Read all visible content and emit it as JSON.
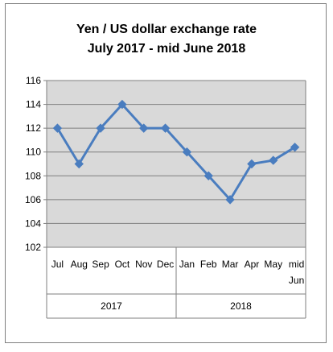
{
  "chart_data": {
    "type": "line",
    "title_lines": [
      "Yen / US dollar exchange rate",
      "July 2017 - mid June 2018"
    ],
    "categories": [
      "Jul",
      "Aug",
      "Sep",
      "Oct",
      "Nov",
      "Dec",
      "Jan",
      "Feb",
      "Mar",
      "Apr",
      "May",
      "mid Jun"
    ],
    "category_groups": [
      {
        "label": "2017",
        "count": 6
      },
      {
        "label": "2018",
        "count": 6
      }
    ],
    "values": [
      112,
      109,
      112,
      114,
      112,
      112,
      110,
      108,
      106,
      109,
      109.3,
      110.4
    ],
    "ylim": [
      102,
      116
    ],
    "yticks": [
      102,
      104,
      106,
      108,
      110,
      112,
      114,
      116
    ],
    "grid": true,
    "legend": "none",
    "colors": {
      "line": "#4a7dbf",
      "marker": "#4a7dbf",
      "plot_bg": "#d9d9d9",
      "grid": "#7f7f7f",
      "frame": "#7f7f7f"
    }
  }
}
